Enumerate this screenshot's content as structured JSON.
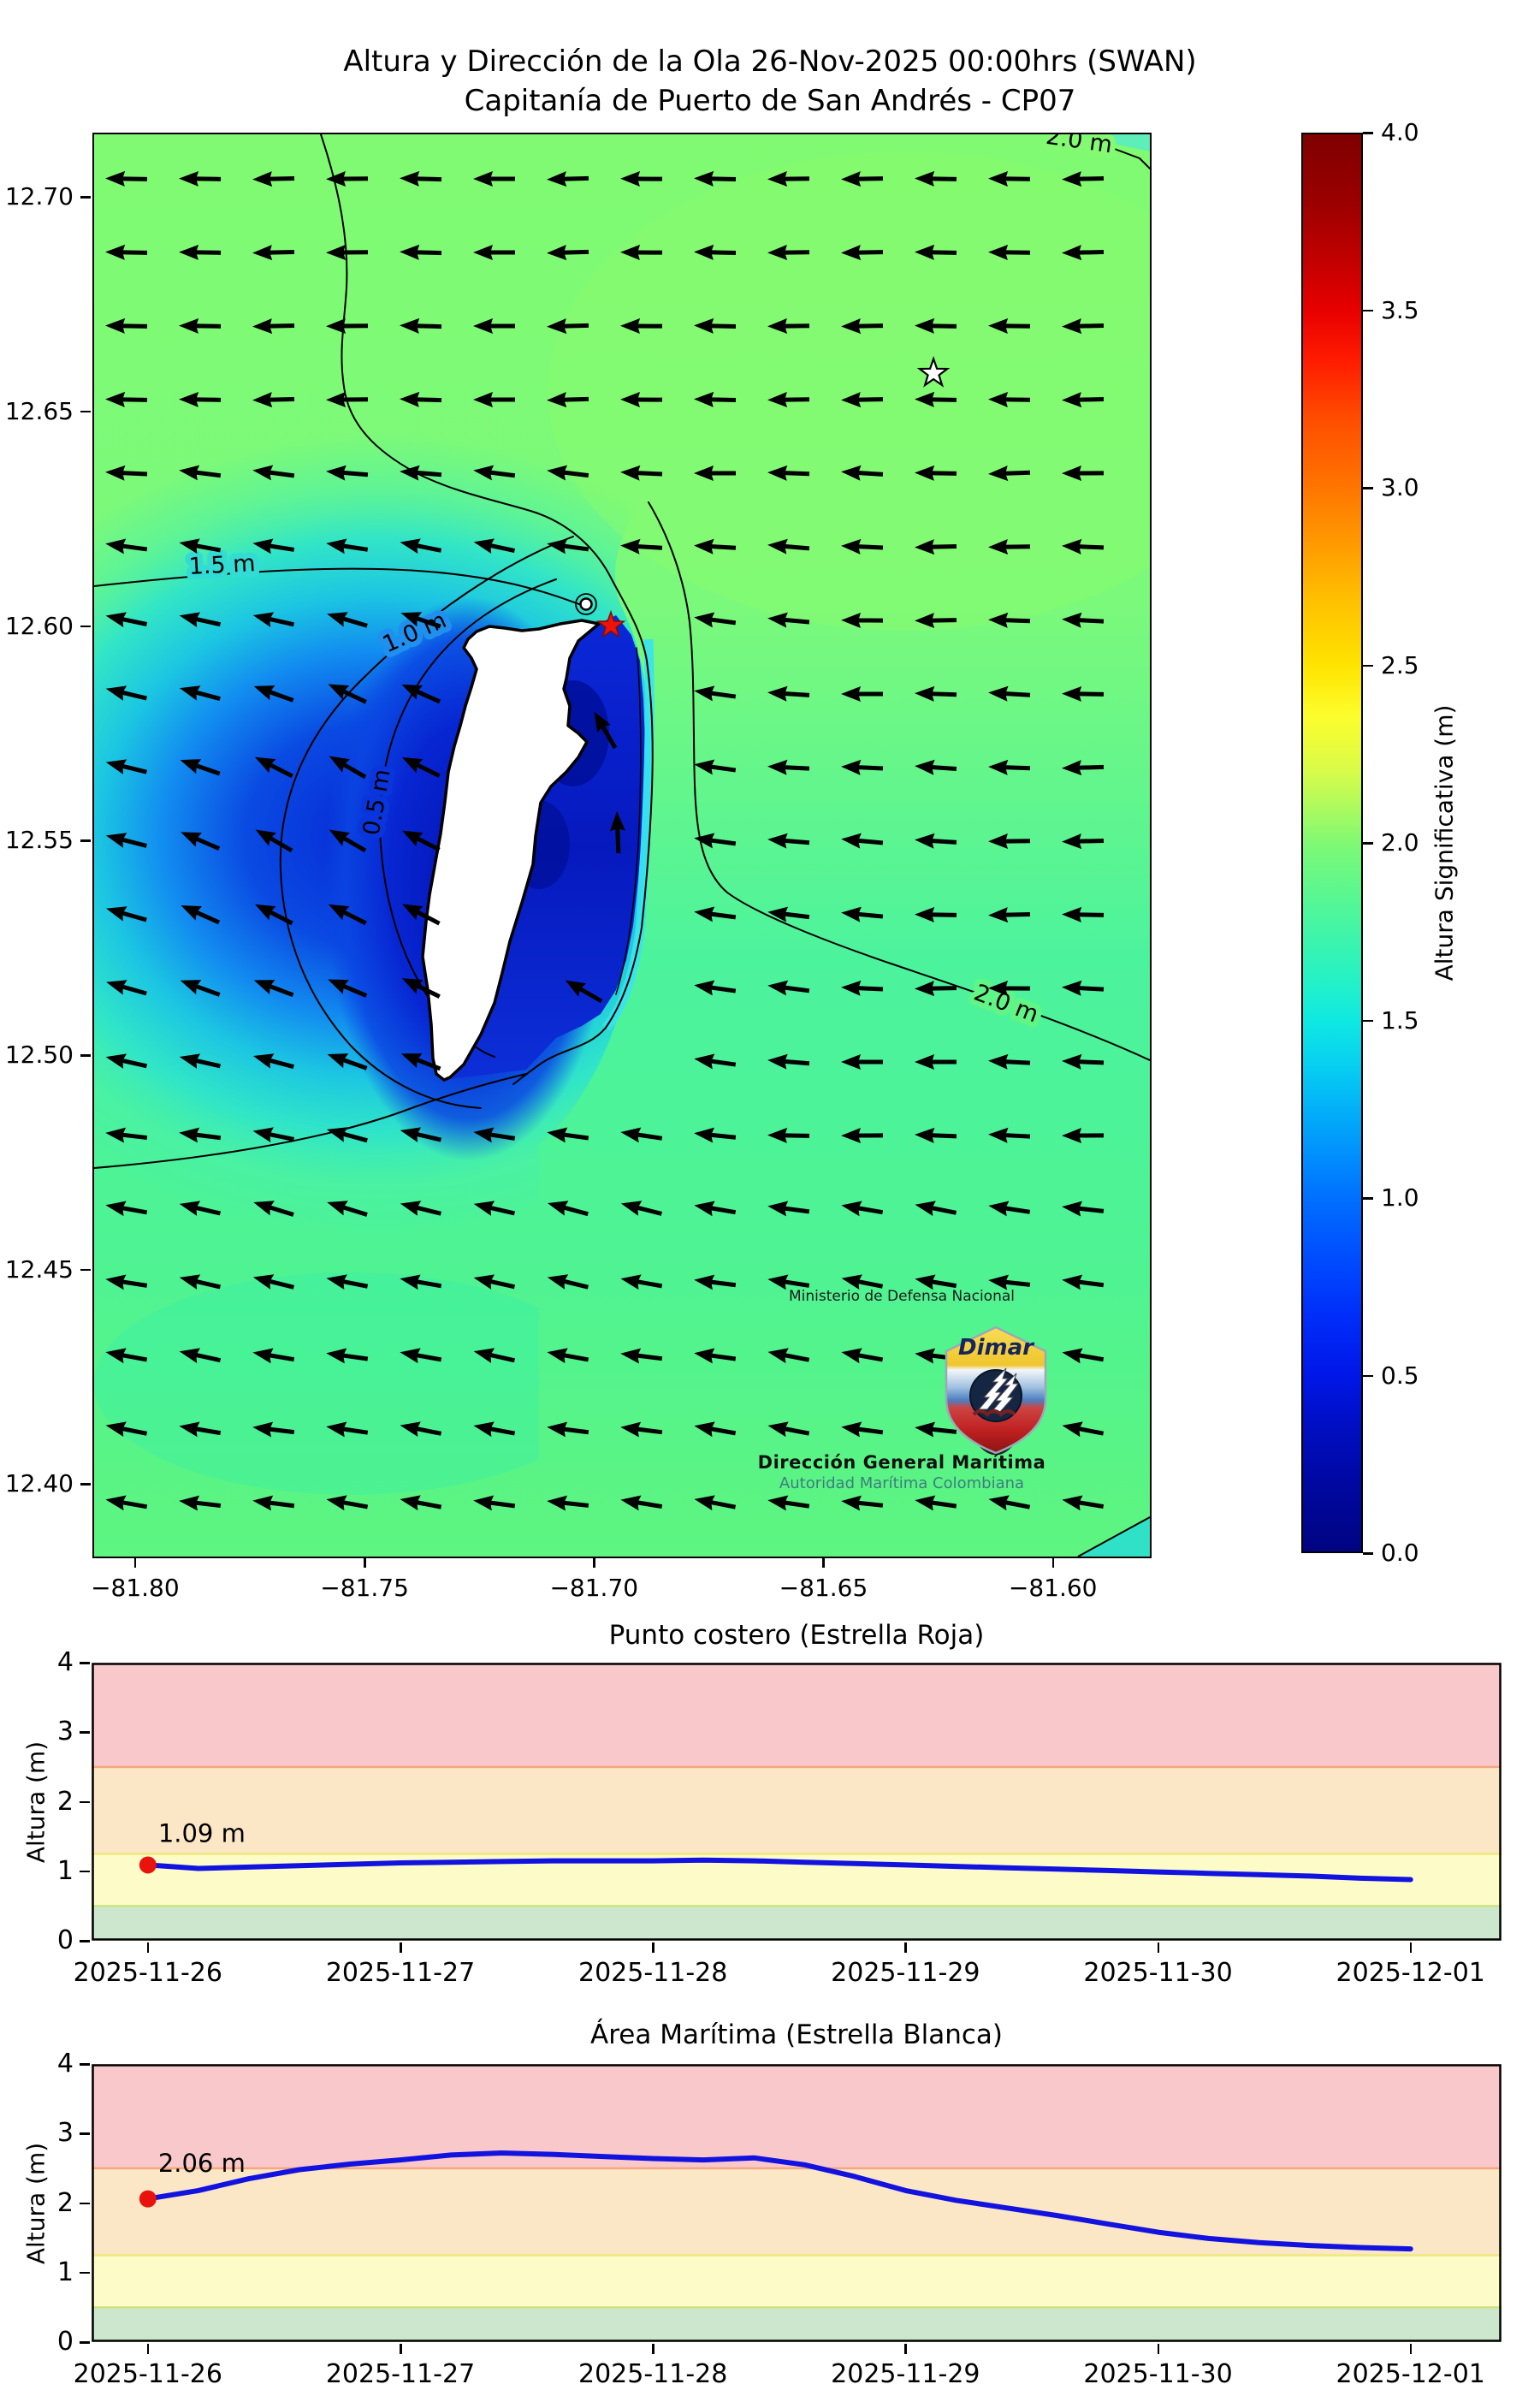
{
  "figure": {
    "title_line1": "Altura y Dirección de la Ola 26-Nov-2025 00:00hrs (SWAN)",
    "title_line2": "Capitanía de Puerto de San Andrés - CP07"
  },
  "map": {
    "y_tick_values": [
      12.7,
      12.65,
      12.6,
      12.55,
      12.5,
      12.45,
      12.4
    ],
    "y_tick_labels": [
      "12.70",
      "12.65",
      "12.60",
      "12.55",
      "12.50",
      "12.45",
      "12.40"
    ],
    "x_tick_values": [
      -81.8,
      -81.75,
      -81.7,
      -81.65,
      -81.6
    ],
    "x_tick_labels": [
      "−81.80",
      "−81.75",
      "−81.70",
      "−81.65",
      "−81.60"
    ],
    "contour_labels": [
      {
        "id": "c20-top",
        "text": "2.0 m"
      },
      {
        "id": "c15",
        "text": "1.5 m"
      },
      {
        "id": "c10",
        "text": "1.0 m"
      },
      {
        "id": "c05",
        "text": "0.5 m"
      },
      {
        "id": "c20-se",
        "text": "2.0 m"
      }
    ],
    "stars": {
      "red": {
        "name": "estrella-roja",
        "lon": -81.6967,
        "lat": 12.6005
      },
      "white": {
        "name": "estrella-blanca",
        "lon": -81.6264,
        "lat": 12.6593
      }
    },
    "arrows": {
      "semantic": "wave-direction-quiver",
      "general_direction": "W to WSW",
      "color": "#000000"
    },
    "logo": {
      "line_top": "Ministerio de Defensa Nacional",
      "brand": "Dimar",
      "line_bold": "Dirección General Marítima",
      "line_sub": "Autoridad Marítima Colombiana"
    }
  },
  "colorbar": {
    "label": "Altura Significativa (m)",
    "tick_labels": [
      "4.0",
      "3.5",
      "3.0",
      "2.5",
      "2.0",
      "1.5",
      "1.0",
      "0.5",
      "0.0"
    ],
    "range": [
      0.0,
      4.0
    ]
  },
  "band_colors": {
    "green": "#cde7cf",
    "yellow": "#fdfcc9",
    "orange": "#fbe6c6",
    "pink": "#f9c8ca",
    "edge_05": "#cbe47f",
    "edge_125": "#eee87c",
    "edge_25": "#f5a77f"
  },
  "chart_data": [
    {
      "type": "heatmap",
      "title": "Altura y Dirección de la Ola 26-Nov-2025 00:00hrs (SWAN)",
      "subtitle": "Capitanía de Puerto de San Andrés - CP07",
      "x_ticks": [
        -81.8,
        -81.75,
        -81.7,
        -81.65,
        -81.6
      ],
      "y_ticks": [
        12.7,
        12.65,
        12.6,
        12.55,
        12.5,
        12.45,
        12.4
      ],
      "colorbar_label": "Altura Significativa (m)",
      "colorbar_range": [
        0.0,
        4.0
      ],
      "contours_m": [
        0.5,
        1.0,
        1.5,
        2.0
      ],
      "field_summary": "Open sea E/NE ~2.0-2.1 m (green); S area ~1.7-1.9 m (teal); wave shadow W of San Andrés island 0.3-1.5 m (blue/cyan); lagoon E of island <0.5 m (dark navy); arrows point W-WSW"
    },
    {
      "type": "line",
      "title": "Punto costero (Estrella Roja)",
      "ylabel": "Altura (m)",
      "ylim": [
        0,
        4
      ],
      "y_tick_labels": [
        "0",
        "1",
        "2",
        "3",
        "4"
      ],
      "x_tick_labels": [
        "2025-11-26",
        "2025-11-27",
        "2025-11-28",
        "2025-11-29",
        "2025-11-30",
        "2025-12-01"
      ],
      "annotation": "1.09 m",
      "start_value": 1.09,
      "line_color": "#1313e0",
      "marker_color": "#e8130c",
      "x_days": [
        0,
        0.2,
        0.4,
        0.6,
        0.8,
        1.0,
        1.2,
        1.4,
        1.6,
        1.8,
        2.0,
        2.2,
        2.4,
        2.6,
        2.8,
        3.0,
        3.2,
        3.4,
        3.6,
        3.8,
        4.0,
        4.2,
        4.4,
        4.6,
        4.8,
        5.0
      ],
      "values": [
        1.09,
        1.04,
        1.06,
        1.08,
        1.1,
        1.12,
        1.13,
        1.14,
        1.15,
        1.15,
        1.15,
        1.16,
        1.15,
        1.13,
        1.11,
        1.09,
        1.07,
        1.05,
        1.03,
        1.01,
        0.99,
        0.97,
        0.95,
        0.93,
        0.9,
        0.88
      ]
    },
    {
      "type": "line",
      "title": "Área Marítima (Estrella Blanca)",
      "ylabel": "Altura (m)",
      "ylim": [
        0,
        4
      ],
      "y_tick_labels": [
        "0",
        "1",
        "2",
        "3",
        "4"
      ],
      "x_tick_labels": [
        "2025-11-26",
        "2025-11-27",
        "2025-11-28",
        "2025-11-29",
        "2025-11-30",
        "2025-12-01"
      ],
      "annotation": "2.06 m",
      "start_value": 2.06,
      "line_color": "#1313e0",
      "marker_color": "#e8130c",
      "x_days": [
        0,
        0.2,
        0.4,
        0.6,
        0.8,
        1.0,
        1.2,
        1.4,
        1.6,
        1.8,
        2.0,
        2.2,
        2.4,
        2.6,
        2.8,
        3.0,
        3.2,
        3.4,
        3.6,
        3.8,
        4.0,
        4.2,
        4.4,
        4.6,
        4.8,
        5.0
      ],
      "values": [
        2.06,
        2.18,
        2.35,
        2.48,
        2.56,
        2.62,
        2.69,
        2.72,
        2.7,
        2.67,
        2.64,
        2.62,
        2.65,
        2.55,
        2.38,
        2.18,
        2.04,
        1.93,
        1.82,
        1.7,
        1.58,
        1.49,
        1.43,
        1.39,
        1.36,
        1.34
      ]
    }
  ]
}
